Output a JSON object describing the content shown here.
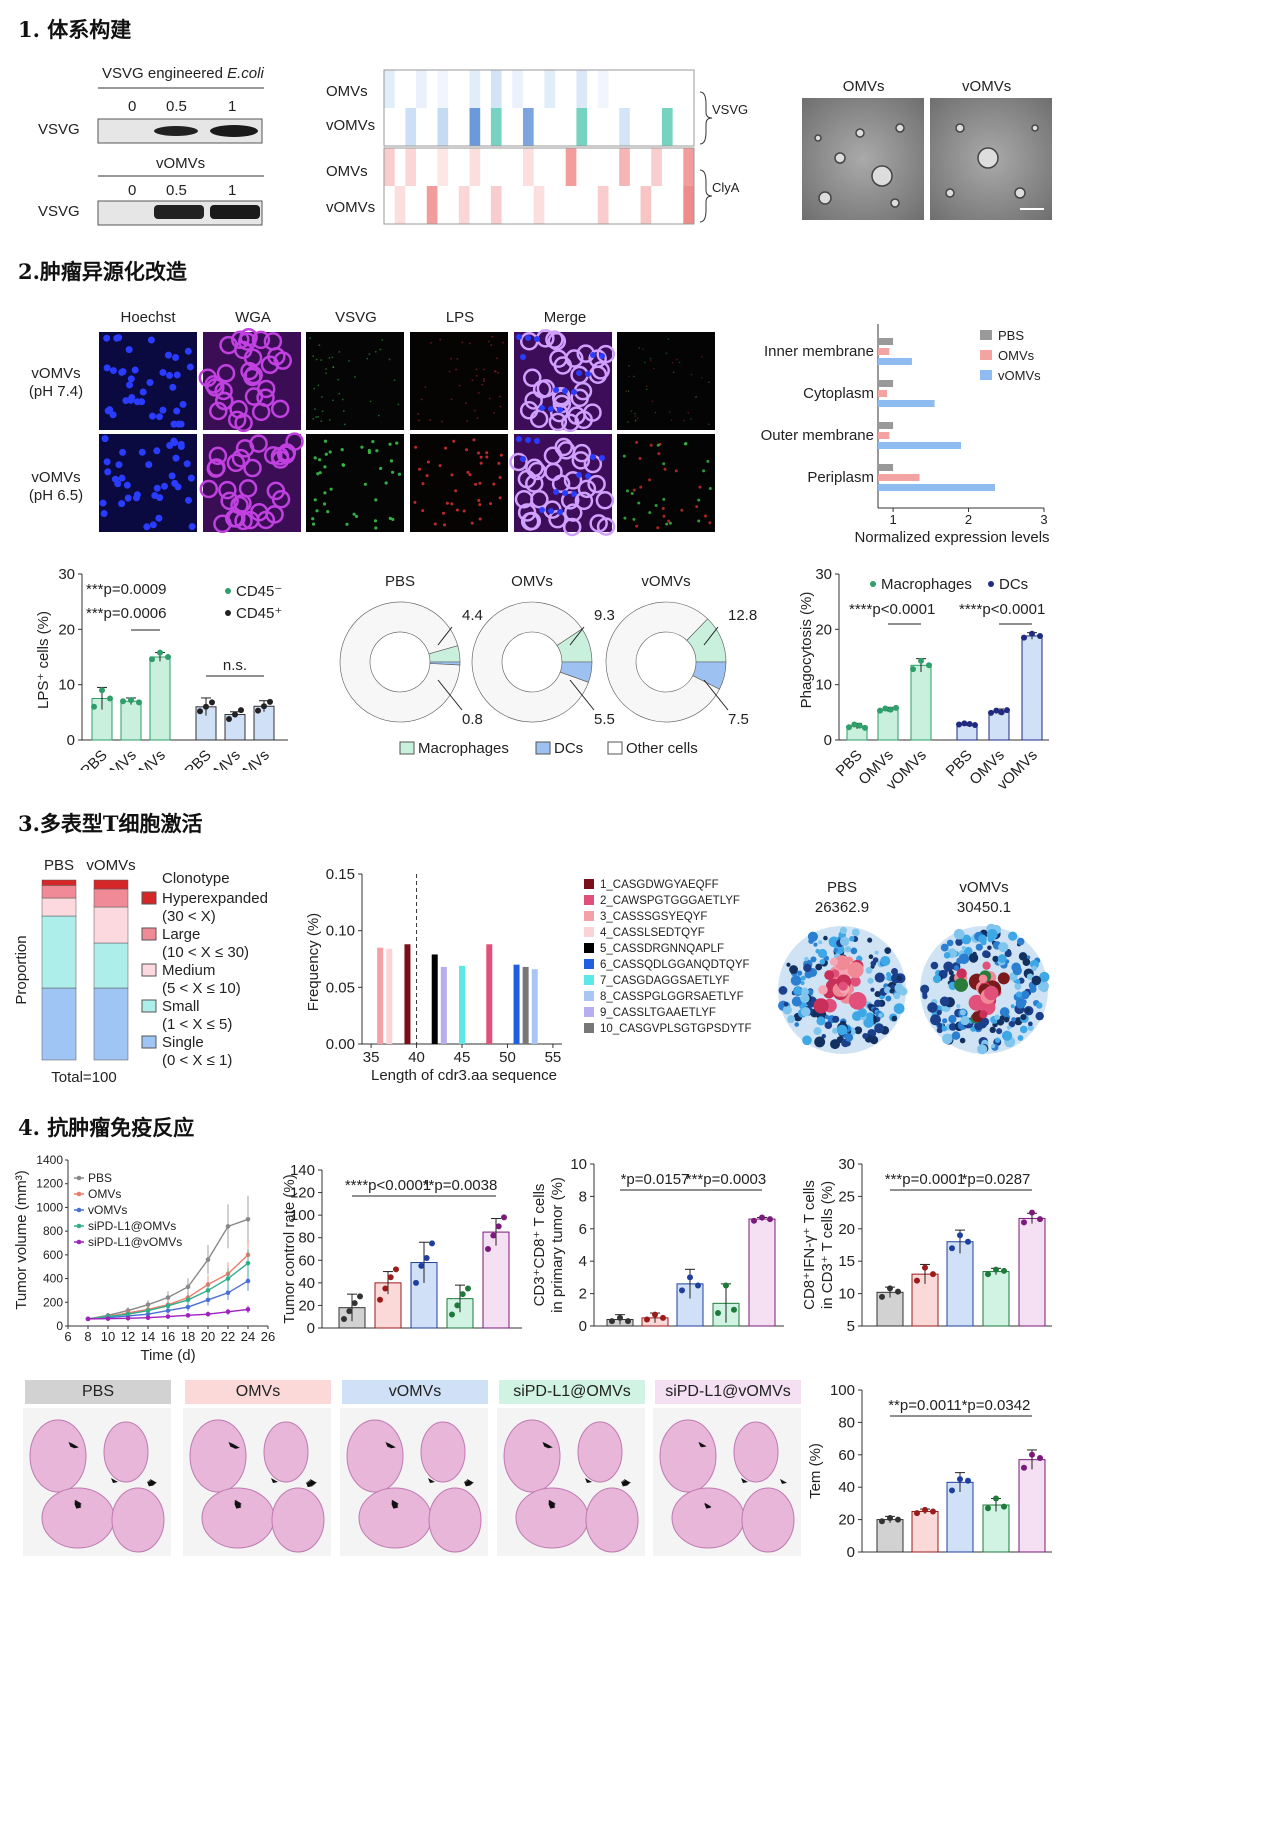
{
  "sections": [
    {
      "title": "1. 体系构建"
    },
    {
      "title": "2.肿瘤异源化改造"
    },
    {
      "title": "3.多表型T细胞激活"
    },
    {
      "title": "4. 抗肿瘤免疫反应"
    }
  ],
  "s1": {
    "wb1_title": "VSVG engineered ",
    "wb1_title_italic": "E.coli",
    "wb2_title": "vOMVs",
    "doses": [
      "0",
      "0.5",
      "1"
    ],
    "row_label": "VSVG",
    "heat_rows": [
      "OMVs",
      "vOMVs",
      "OMVs",
      "vOMVs"
    ],
    "heat_groups": [
      "VSVG",
      "ClyA"
    ],
    "tem_labels": [
      "OMVs",
      "vOMVs"
    ]
  },
  "s2": {
    "col_heads": [
      "Hoechst",
      "WGA",
      "VSVG",
      "LPS",
      "Merge"
    ],
    "row_heads": [
      [
        "vOMVs",
        "(pH 7.4)"
      ],
      [
        "vOMVs",
        "(pH 6.5)"
      ]
    ],
    "membrane": {
      "categories": [
        "Inner membrane",
        "Cytoplasm",
        "Outer membrane",
        "Periplasm"
      ],
      "legend": [
        "PBS",
        "OMVs",
        "vOMVs"
      ],
      "xlabel": "Normalized expression levels",
      "xticks": [
        "1",
        "2",
        "3"
      ]
    },
    "lps": {
      "ylabel": "LPS⁺ cells (%)",
      "yticks": [
        "0",
        "10",
        "20",
        "30"
      ],
      "stat1": "***p=0.0009",
      "stat2": "***p=0.0006",
      "ns": "n.s.",
      "legend": [
        "CD45⁻",
        "CD45⁺"
      ],
      "xcats": [
        "PBS",
        "OMVs",
        "vOMVs",
        "PBS",
        "OMVs",
        "vOMVs"
      ]
    },
    "donuts": {
      "titles": [
        "PBS",
        "OMVs",
        "vOMVs"
      ],
      "mac": [
        "4.4",
        "9.3",
        "12.8"
      ],
      "dc": [
        "0.8",
        "5.5",
        "7.5"
      ],
      "legend": [
        "Macrophages",
        "DCs",
        "Other cells"
      ]
    },
    "phago": {
      "ylabel": "Phagocytosis (%)",
      "yticks": [
        "0",
        "10",
        "20",
        "30"
      ],
      "legend": [
        "Macrophages",
        "DCs"
      ],
      "stat1": "****p<0.0001",
      "stat2": "****p<0.0001",
      "xcats": [
        "PBS",
        "OMVs",
        "vOMVs",
        "PBS",
        "OMVs",
        "vOMVs"
      ]
    }
  },
  "s3": {
    "stack": {
      "groups": [
        "PBS",
        "vOMVs"
      ],
      "ylabel": "Proportion",
      "total": "Total=100",
      "legend_title": "Clonotype",
      "legend": [
        {
          "name": "Hyperexpanded",
          "range": "(30 < X)",
          "color": "#d62728"
        },
        {
          "name": "Large",
          "range": "(10 < X ≤ 30)",
          "color": "#f08a96"
        },
        {
          "name": "Medium",
          "range": "(5 < X ≤ 10)",
          "color": "#fcd9de"
        },
        {
          "name": "Small",
          "range": "(1 < X ≤ 5)",
          "color": "#aeeeea"
        },
        {
          "name": "Single",
          "range": "(0 < X ≤ 1)",
          "color": "#9fc5f5"
        }
      ]
    },
    "cdr3": {
      "ylabel": "Frequency (%)",
      "xlabel": "Length of cdr3.aa sequence",
      "yticks": [
        "0.00",
        "0.05",
        "0.10",
        "0.15"
      ],
      "xticks": [
        "35",
        "40",
        "45",
        "50",
        "55"
      ]
    },
    "clones": [
      {
        "name": "1_CASGDWGYAEQFF",
        "color": "#7a0f19"
      },
      {
        "name": "2_CAWSPGTGGGAETLYF",
        "color": "#e0507a"
      },
      {
        "name": "3_CASSSGSYEQYF",
        "color": "#f3a1a7"
      },
      {
        "name": "4_CASSLSEDTQYF",
        "color": "#f9d3d6"
      },
      {
        "name": "5_CASSDRGNNQAPLF",
        "color": "#000000"
      },
      {
        "name": "6_CASSQDLGGANQDTQYF",
        "color": "#1f5fe0"
      },
      {
        "name": "7_CASGDAGGSAETLYF",
        "color": "#5ce8e8"
      },
      {
        "name": "8_CASSPGLGGRSAETLYF",
        "color": "#a9c6f2"
      },
      {
        "name": "9_CASSLTGAAETLYF",
        "color": "#b7aef0"
      },
      {
        "name": "10_CASGVPLSGTGPSDYTF",
        "color": "#777777"
      }
    ],
    "bubbles": [
      {
        "name": "PBS",
        "value": "26362.9"
      },
      {
        "name": "vOMVs",
        "value": "30450.1"
      }
    ]
  },
  "s4": {
    "tumor": {
      "ylabel": "Tumor volume (mm³)",
      "xlabel": "Time (d)",
      "yticks": [
        "0",
        "200",
        "400",
        "600",
        "800",
        "1000",
        "1200",
        "1400"
      ],
      "xticks": [
        "6",
        "8",
        "10",
        "12",
        "14",
        "16",
        "18",
        "20",
        "22",
        "24",
        "26"
      ],
      "legend": [
        "PBS",
        "OMVs",
        "vOMVs",
        "siPD-L1@OMVs",
        "siPD-L1@vOMVs"
      ]
    },
    "control": {
      "ylabel": "Tumor control rate (%)",
      "yticks": [
        "0",
        "20",
        "40",
        "60",
        "80",
        "100",
        "120",
        "140"
      ],
      "stat1": "****p<0.0001",
      "stat2": "**p=0.0038"
    },
    "cd8": {
      "ylabel": [
        "CD3⁺CD8⁺ T cells",
        "in primary tumor (%)"
      ],
      "yticks": [
        "0",
        "2",
        "4",
        "6",
        "8",
        "10"
      ],
      "stat1": "*p=0.0157",
      "stat2": "***p=0.0003"
    },
    "ifn": {
      "ylabel": [
        "CD8⁺IFN-γ⁺ T cells",
        "in CD3⁺ T cells (%)"
      ],
      "yticks": [
        "5",
        "10",
        "15",
        "20",
        "25",
        "30"
      ],
      "stat1": "***p=0.0001",
      "stat2": "*p=0.0287"
    },
    "tem": {
      "ylabel": "Tem (%)",
      "yticks": [
        "0",
        "20",
        "40",
        "60",
        "80",
        "100"
      ],
      "stat1": "**p=0.0011",
      "stat2": "*p=0.0342"
    },
    "lung_labels": [
      "PBS",
      "OMVs",
      "vOMVs",
      "siPD-L1@OMVs",
      "siPD-L1@vOMVs"
    ]
  },
  "chart_data": [
    {
      "type": "heatmap",
      "title": "",
      "rows": [
        "OMVs",
        "vOMVs",
        "OMVs",
        "vOMVs"
      ],
      "groups": [
        "VSVG",
        "ClyA"
      ]
    },
    {
      "type": "bar",
      "categories": [
        "Inner membrane",
        "Cytoplasm",
        "Outer membrane",
        "Periplasm"
      ],
      "series": [
        {
          "name": "PBS",
          "values": [
            1.0,
            1.0,
            1.0,
            1.0
          ]
        },
        {
          "name": "OMVs",
          "values": [
            0.95,
            0.92,
            0.95,
            1.35
          ]
        },
        {
          "name": "vOMVs",
          "values": [
            1.25,
            1.55,
            1.9,
            2.35
          ]
        }
      ],
      "xlabel": "Normalized expression levels",
      "xlim": [
        0.8,
        3
      ]
    },
    {
      "type": "bar",
      "categories": [
        "PBS",
        "OMVs",
        "vOMVs"
      ],
      "series": [
        {
          "name": "CD45⁻",
          "values": [
            7.5,
            7.0,
            15.0
          ]
        },
        {
          "name": "CD45⁺",
          "values": [
            6.0,
            4.6,
            6.1
          ]
        }
      ],
      "ylabel": "LPS⁺ cells (%)",
      "ylim": [
        0,
        30
      ]
    },
    {
      "type": "pie",
      "groups": [
        "PBS",
        "OMVs",
        "vOMVs"
      ],
      "Macrophages": [
        4.4,
        9.3,
        12.8
      ],
      "DCs": [
        0.8,
        5.5,
        7.5
      ]
    },
    {
      "type": "bar",
      "categories": [
        "PBS",
        "OMVs",
        "vOMVs"
      ],
      "series": [
        {
          "name": "Macrophages",
          "values": [
            2.5,
            5.5,
            13.5
          ]
        },
        {
          "name": "DCs",
          "values": [
            2.8,
            5.1,
            18.8
          ]
        }
      ],
      "ylabel": "Phagocytosis (%)",
      "ylim": [
        0,
        30
      ]
    },
    {
      "type": "bar",
      "categories": [
        "PBS",
        "vOMVs"
      ],
      "series": [
        {
          "name": "Single",
          "values": [
            40,
            40
          ]
        },
        {
          "name": "Small",
          "values": [
            40,
            25
          ]
        },
        {
          "name": "Medium",
          "values": [
            10,
            20
          ]
        },
        {
          "name": "Large",
          "values": [
            7,
            10
          ]
        },
        {
          "name": "Hyperexpanded",
          "values": [
            3,
            5
          ]
        }
      ],
      "ylabel": "Proportion"
    },
    {
      "type": "bar",
      "x": [
        36,
        37,
        39,
        42,
        43,
        45,
        48,
        51,
        52,
        53
      ],
      "values": [
        0.085,
        0.084,
        0.088,
        0.079,
        0.068,
        0.069,
        0.088,
        0.07,
        0.068,
        0.066
      ],
      "xlabel": "Length of cdr3.aa sequence",
      "ylabel": "Frequency (%)",
      "ylim": [
        0,
        0.15
      ]
    },
    {
      "type": "line",
      "x": [
        8,
        10,
        12,
        14,
        16,
        18,
        20,
        22,
        24
      ],
      "series": [
        {
          "name": "PBS",
          "values": [
            60,
            90,
            130,
            180,
            240,
            330,
            560,
            840,
            900
          ]
        },
        {
          "name": "OMVs",
          "values": [
            60,
            80,
            110,
            140,
            180,
            240,
            350,
            440,
            600
          ]
        },
        {
          "name": "vOMVs",
          "values": [
            60,
            70,
            85,
            100,
            130,
            160,
            220,
            280,
            380
          ]
        },
        {
          "name": "siPD-L1@OMVs",
          "values": [
            60,
            80,
            100,
            130,
            170,
            220,
            300,
            400,
            530
          ]
        },
        {
          "name": "siPD-L1@vOMVs",
          "values": [
            60,
            62,
            65,
            70,
            80,
            90,
            100,
            120,
            140
          ]
        }
      ],
      "xlabel": "Time (d)",
      "ylabel": "Tumor volume (mm³)",
      "ylim": [
        0,
        1400
      ]
    },
    {
      "type": "bar",
      "categories": [
        "PBS",
        "OMVs",
        "vOMVs",
        "siPD-L1@OMVs",
        "siPD-L1@vOMVs"
      ],
      "values": [
        18,
        40,
        58,
        26,
        85
      ],
      "ylabel": "Tumor control rate (%)",
      "ylim": [
        0,
        140
      ]
    },
    {
      "type": "bar",
      "categories": [
        "PBS",
        "OMVs",
        "vOMVs",
        "siPD-L1@OMVs",
        "siPD-L1@vOMVs"
      ],
      "values": [
        0.4,
        0.5,
        2.6,
        1.4,
        6.6
      ],
      "ylim": [
        0,
        10
      ]
    },
    {
      "type": "bar",
      "categories": [
        "PBS",
        "OMVs",
        "vOMVs",
        "siPD-L1@OMVs",
        "siPD-L1@vOMVs"
      ],
      "values": [
        10.2,
        13.0,
        18.0,
        13.4,
        21.6
      ],
      "ylim": [
        5,
        30
      ]
    },
    {
      "type": "bar",
      "categories": [
        "PBS",
        "OMVs",
        "vOMVs",
        "siPD-L1@OMVs",
        "siPD-L1@vOMVs"
      ],
      "values": [
        20,
        25,
        43,
        29,
        57
      ],
      "ylabel": "Tem (%)",
      "ylim": [
        0,
        100
      ]
    }
  ]
}
